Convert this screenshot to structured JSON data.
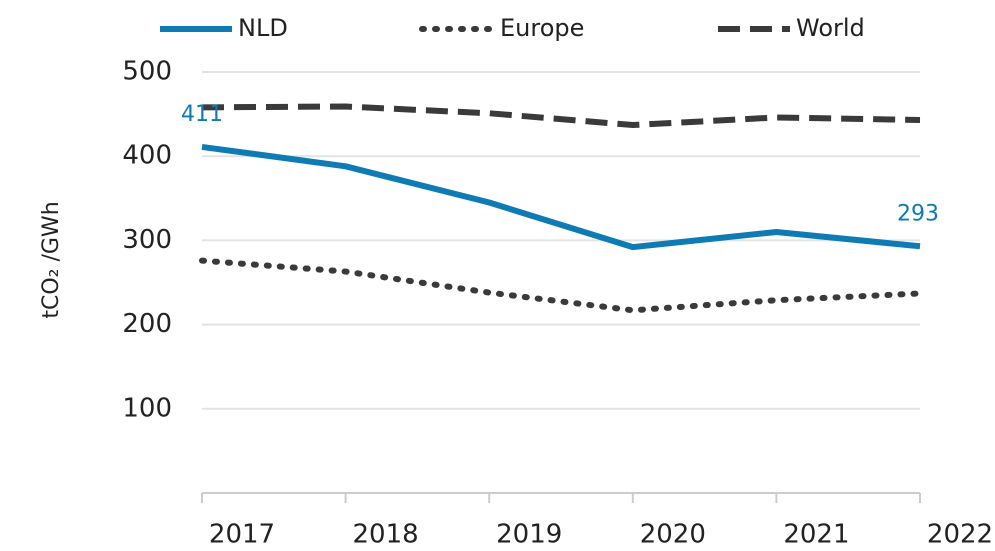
{
  "chart_data": {
    "type": "line",
    "x": [
      2017,
      2018,
      2019,
      2020,
      2021,
      2022
    ],
    "series": [
      {
        "name": "NLD",
        "color": "#0e7bb4",
        "style": "solid",
        "values": [
          411,
          388,
          345,
          292,
          310,
          293
        ]
      },
      {
        "name": "Europe",
        "color": "#3a3a3a",
        "style": "dotted",
        "values": [
          276,
          263,
          238,
          217,
          229,
          237
        ]
      },
      {
        "name": "World",
        "color": "#3a3a3a",
        "style": "dashed",
        "values": [
          458,
          459,
          451,
          437,
          446,
          443
        ]
      }
    ],
    "ylabel": "tCO₂ /GWh",
    "ylim": [
      0,
      500
    ],
    "yticks": [
      100,
      200,
      300,
      400,
      500
    ],
    "grid": true,
    "legend": "top"
  }
}
